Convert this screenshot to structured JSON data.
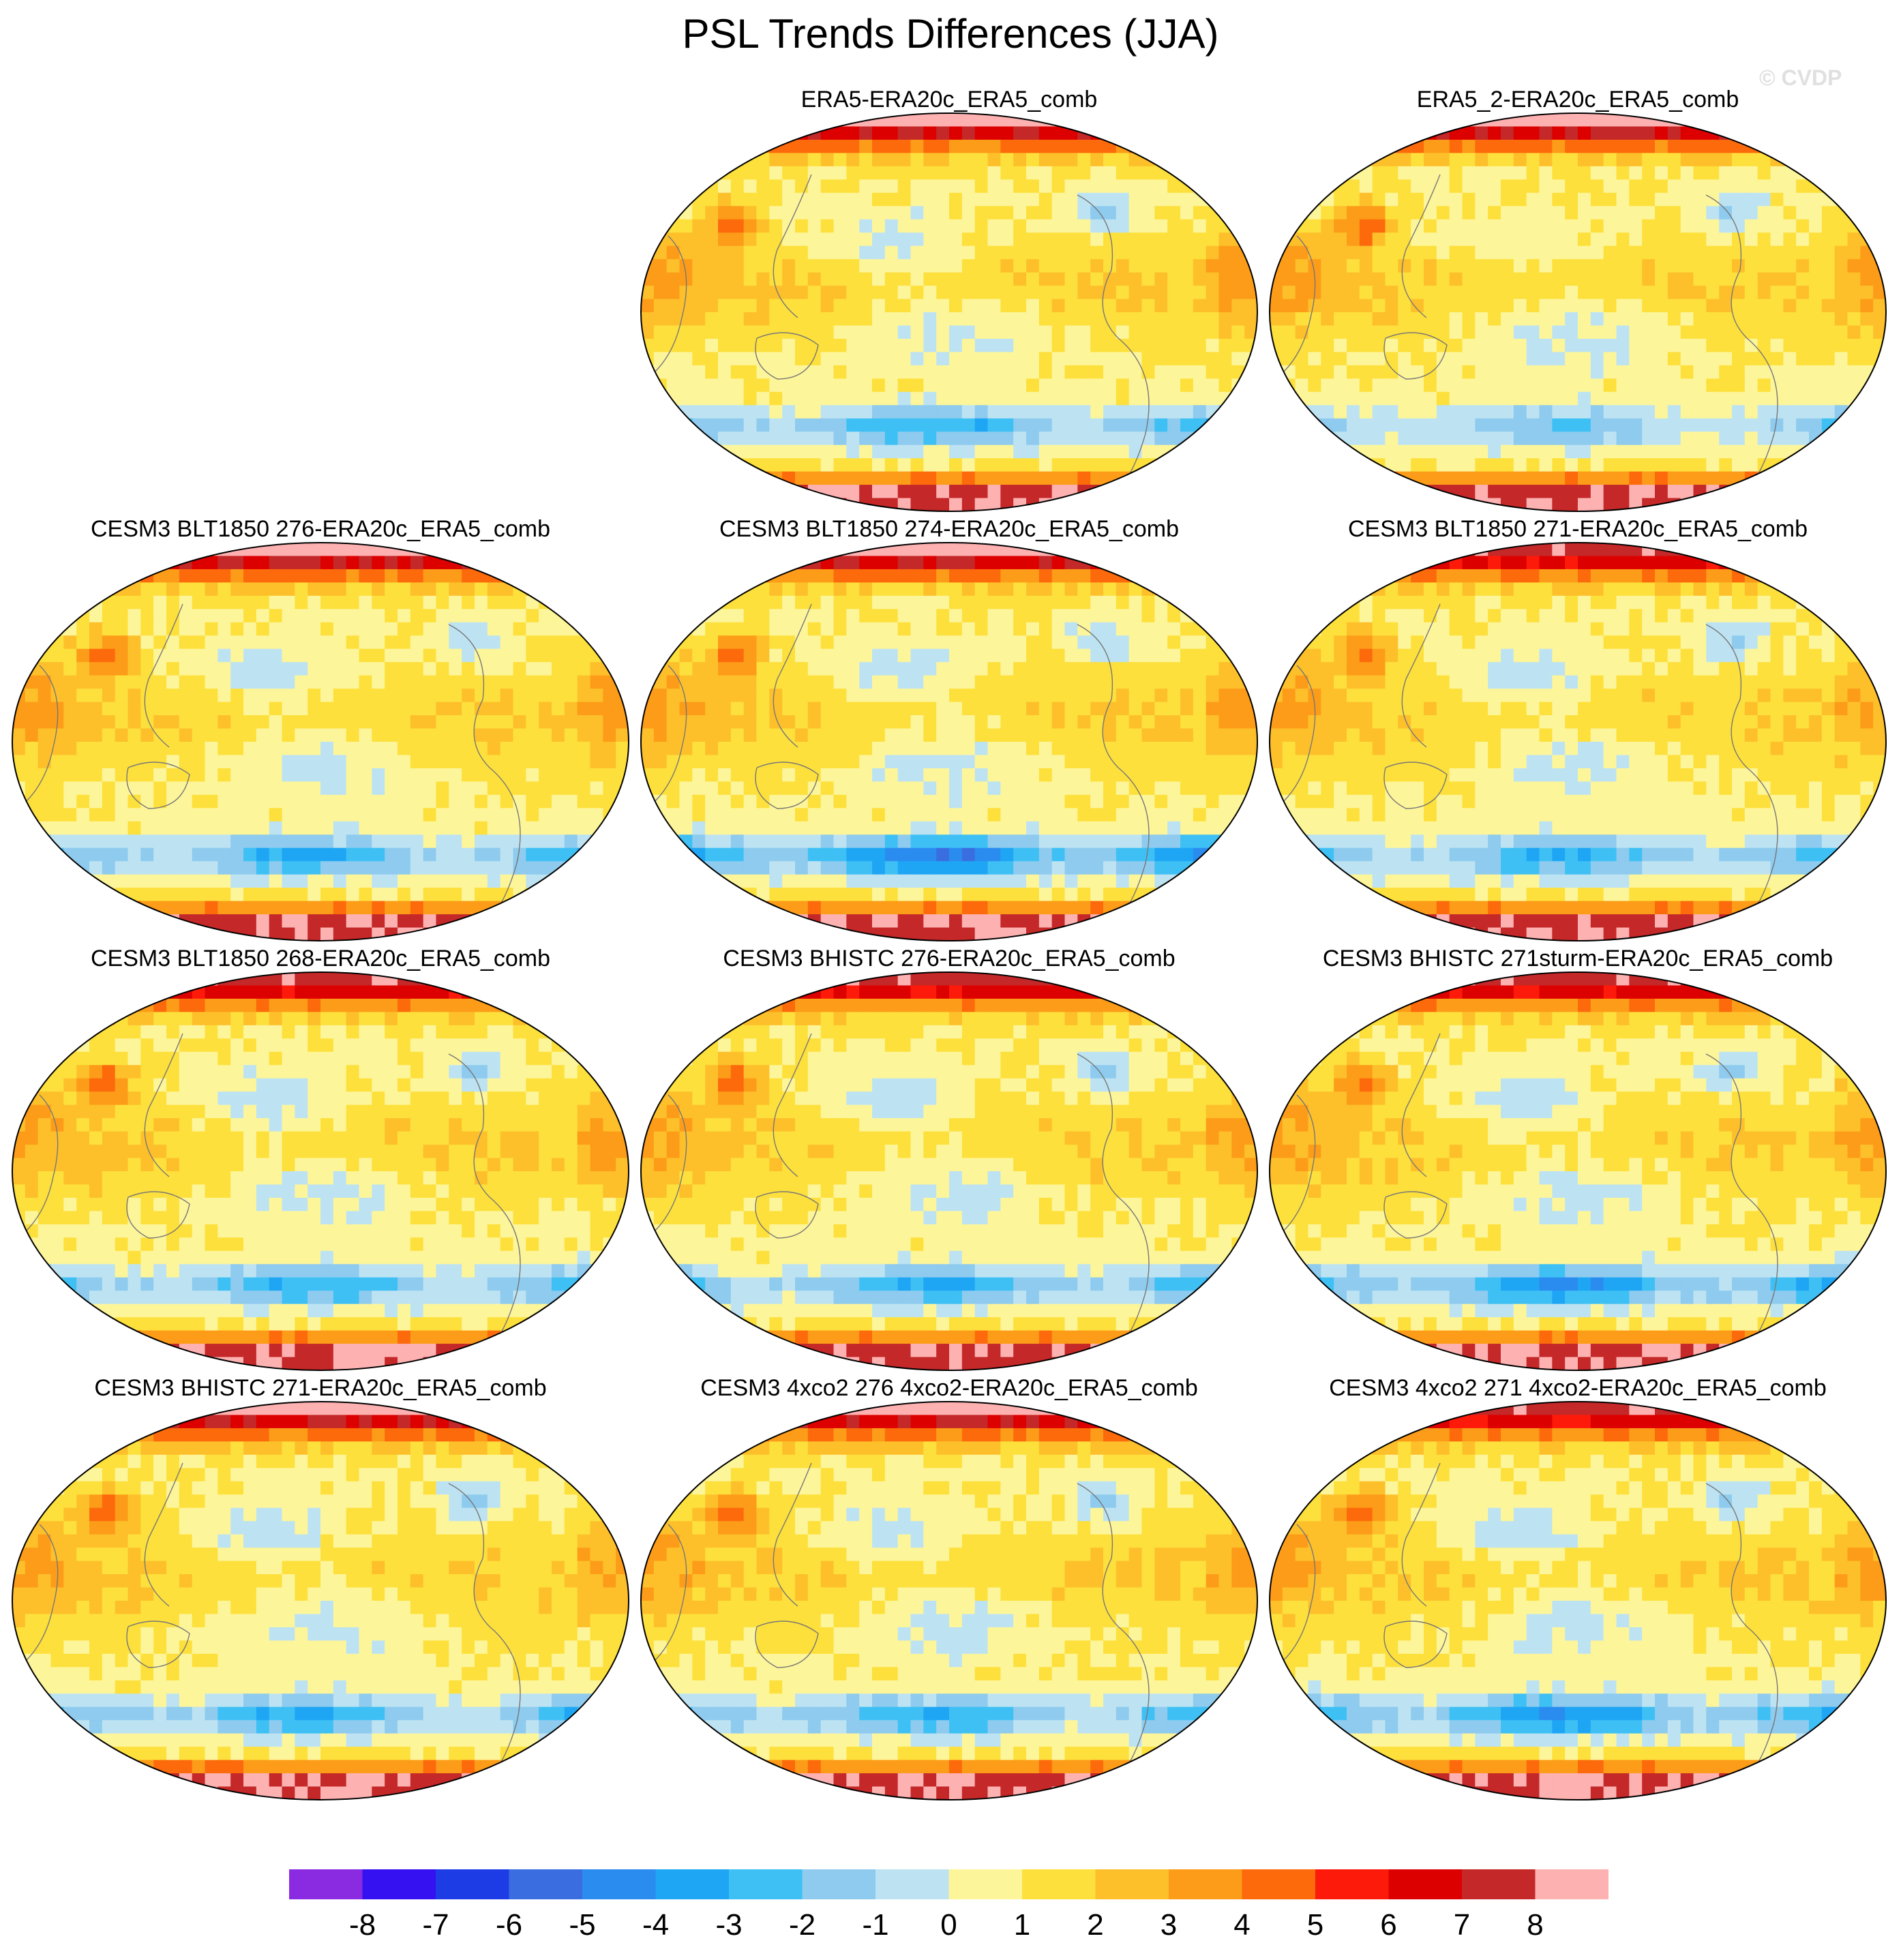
{
  "figure": {
    "title": "PSL Trends Differences (JJA)",
    "watermark": "© CVDP"
  },
  "chart_data": {
    "type": "heatmap",
    "variable": "PSL",
    "season": "JJA",
    "projection": "Robinson (global map)",
    "panels": [
      {
        "title": "ERA5-ERA20c_ERA5_comb",
        "row": 0,
        "col": 1,
        "seed": 11,
        "southern_ocean_min": -4,
        "pacific_min": -2,
        "arctic_max": 8,
        "antarctic_max": 8
      },
      {
        "title": "ERA5_2-ERA20c_ERA5_comb",
        "row": 0,
        "col": 2,
        "seed": 23,
        "southern_ocean_min": -3,
        "pacific_min": -1,
        "arctic_max": 8,
        "antarctic_max": 8
      },
      {
        "title": "CESM3 BLT1850 276-ERA20c_ERA5_comb",
        "row": 1,
        "col": 0,
        "seed": 37,
        "southern_ocean_min": -4,
        "pacific_min": -2,
        "arctic_max": 8,
        "antarctic_max": 8
      },
      {
        "title": "CESM3 BLT1850 274-ERA20c_ERA5_comb",
        "row": 1,
        "col": 1,
        "seed": 41,
        "southern_ocean_min": -6,
        "pacific_min": -2,
        "arctic_max": 8,
        "antarctic_max": 8
      },
      {
        "title": "CESM3 BLT1850 271-ERA20c_ERA5_comb",
        "row": 1,
        "col": 2,
        "seed": 53,
        "southern_ocean_min": -4,
        "pacific_min": -2,
        "arctic_max": 7,
        "antarctic_max": 8
      },
      {
        "title": "CESM3 BLT1850 268-ERA20c_ERA5_comb",
        "row": 2,
        "col": 0,
        "seed": 61,
        "southern_ocean_min": -4,
        "pacific_min": -2,
        "arctic_max": 7,
        "antarctic_max": 8
      },
      {
        "title": "CESM3 BHISTC 276-ERA20c_ERA5_comb",
        "row": 2,
        "col": 1,
        "seed": 73,
        "southern_ocean_min": -4,
        "pacific_min": -2,
        "arctic_max": 7,
        "antarctic_max": 8
      },
      {
        "title": "CESM3 BHISTC 271sturm-ERA20c_ERA5_comb",
        "row": 2,
        "col": 2,
        "seed": 89,
        "southern_ocean_min": -5,
        "pacific_min": -2,
        "arctic_max": 7,
        "antarctic_max": 8
      },
      {
        "title": "CESM3 BHISTC 271-ERA20c_ERA5_comb",
        "row": 3,
        "col": 0,
        "seed": 97,
        "southern_ocean_min": -4,
        "pacific_min": -2,
        "arctic_max": 8,
        "antarctic_max": 8
      },
      {
        "title": "CESM3 4xco2 276 4xco2-ERA20c_ERA5_comb",
        "row": 3,
        "col": 1,
        "seed": 103,
        "southern_ocean_min": -4,
        "pacific_min": -2,
        "arctic_max": 8,
        "antarctic_max": 8
      },
      {
        "title": "CESM3 4xco2 271 4xco2-ERA20c_ERA5_comb",
        "row": 3,
        "col": 2,
        "seed": 113,
        "southern_ocean_min": -5,
        "pacific_min": -2,
        "arctic_max": 7,
        "antarctic_max": 8
      }
    ],
    "colorbar": {
      "ticks": [
        "-8",
        "-7",
        "-6",
        "-5",
        "-4",
        "-3",
        "-2",
        "-1",
        "0",
        "1",
        "2",
        "3",
        "4",
        "5",
        "6",
        "7",
        "8"
      ],
      "bins": [
        {
          "lo": -99,
          "hi": -8,
          "color": "#8a2be2"
        },
        {
          "lo": -8,
          "hi": -7,
          "color": "#3510f0"
        },
        {
          "lo": -7,
          "hi": -6,
          "color": "#1e3ce6"
        },
        {
          "lo": -6,
          "hi": -5,
          "color": "#3a6ee0"
        },
        {
          "lo": -5,
          "hi": -4,
          "color": "#2b8cf0"
        },
        {
          "lo": -4,
          "hi": -3,
          "color": "#1ea6f5"
        },
        {
          "lo": -3,
          "hi": -2,
          "color": "#3ec0f5"
        },
        {
          "lo": -2,
          "hi": -1,
          "color": "#8ecbee"
        },
        {
          "lo": -1,
          "hi": 0,
          "color": "#bde3f2"
        },
        {
          "lo": 0,
          "hi": 1,
          "color": "#fdf59a"
        },
        {
          "lo": 1,
          "hi": 2,
          "color": "#fde03c"
        },
        {
          "lo": 2,
          "hi": 3,
          "color": "#fdc02b"
        },
        {
          "lo": 3,
          "hi": 4,
          "color": "#fd9c18"
        },
        {
          "lo": 4,
          "hi": 5,
          "color": "#fd6a0c"
        },
        {
          "lo": 5,
          "hi": 6,
          "color": "#fe1a0a"
        },
        {
          "lo": 6,
          "hi": 7,
          "color": "#dd0000"
        },
        {
          "lo": 7,
          "hi": 8,
          "color": "#c42828"
        },
        {
          "lo": 8,
          "hi": 99,
          "color": "#fdb1b1"
        }
      ]
    }
  }
}
